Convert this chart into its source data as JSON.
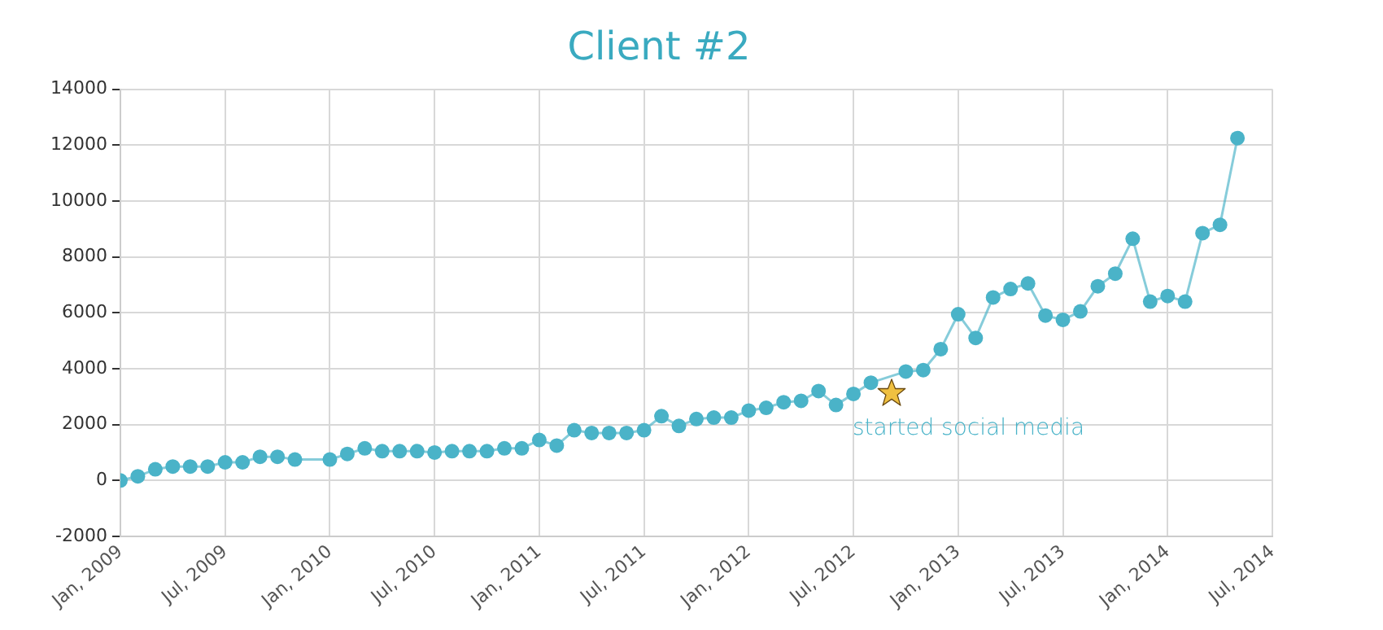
{
  "chart_data": {
    "type": "line",
    "title": "Client #2",
    "x": [
      "2009-01",
      "2009-02",
      "2009-03",
      "2009-04",
      "2009-05",
      "2009-06",
      "2009-07",
      "2009-08",
      "2009-09",
      "2009-10",
      "2009-11",
      "2010-01",
      "2010-02",
      "2010-03",
      "2010-04",
      "2010-05",
      "2010-06",
      "2010-07",
      "2010-08",
      "2010-09",
      "2010-10",
      "2010-11",
      "2010-12",
      "2011-01",
      "2011-02",
      "2011-03",
      "2011-04",
      "2011-05",
      "2011-06",
      "2011-07",
      "2011-08",
      "2011-09",
      "2011-10",
      "2011-11",
      "2011-12",
      "2012-01",
      "2012-02",
      "2012-03",
      "2012-04",
      "2012-05",
      "2012-06",
      "2012-07",
      "2012-08",
      "2012-09",
      "2012-10",
      "2012-11",
      "2012-12",
      "2013-01",
      "2013-02",
      "2013-03",
      "2013-04",
      "2013-05",
      "2013-06",
      "2013-07",
      "2013-08",
      "2013-09",
      "2013-10",
      "2013-11",
      "2013-12",
      "2014-01",
      "2014-02",
      "2014-03",
      "2014-04",
      "2014-05"
    ],
    "series": [
      {
        "color": "#4ab3c8",
        "values": [
          0,
          150,
          400,
          500,
          500,
          500,
          650,
          650,
          850,
          850,
          750,
          750,
          950,
          1150,
          1050,
          1050,
          1050,
          1000,
          1050,
          1050,
          1050,
          1150,
          1150,
          1450,
          1250,
          1800,
          1700,
          1700,
          1700,
          1800,
          2300,
          1950,
          2200,
          2250,
          2250,
          2500,
          2600,
          2800,
          2850,
          3200,
          2700,
          3100,
          3500,
          null,
          3900,
          3950,
          4700,
          5950,
          5100,
          6550,
          6850,
          7050,
          5900,
          5750,
          6050,
          6950,
          7400,
          8650,
          6400,
          6600,
          6400,
          8850,
          9150,
          12250
        ]
      }
    ],
    "xlim": [
      "2009-01",
      "2014-07"
    ],
    "xticks": [
      {
        "value": "2009-01",
        "label": "Jan, 2009"
      },
      {
        "value": "2009-07",
        "label": "Jul, 2009"
      },
      {
        "value": "2010-01",
        "label": "Jan, 2010"
      },
      {
        "value": "2010-07",
        "label": "Jul, 2010"
      },
      {
        "value": "2011-01",
        "label": "Jan, 2011"
      },
      {
        "value": "2011-07",
        "label": "Jul, 2011"
      },
      {
        "value": "2012-01",
        "label": "Jan, 2012"
      },
      {
        "value": "2012-07",
        "label": "Jul, 2012"
      },
      {
        "value": "2013-01",
        "label": "Jan, 2013"
      },
      {
        "value": "2013-07",
        "label": "Jul, 2013"
      },
      {
        "value": "2014-01",
        "label": "Jan, 2014"
      },
      {
        "value": "2014-07",
        "label": "Jul, 2014"
      }
    ],
    "ylim": [
      -2000,
      14000
    ],
    "yticks": [
      -2000,
      0,
      2000,
      4000,
      6000,
      8000,
      10000,
      12000,
      14000
    ],
    "annotations": [
      {
        "text": "started social media",
        "x": "2012-09",
        "y": 3300
      }
    ],
    "grid": true,
    "marker": "circle",
    "line_style": "solid",
    "legend": false
  }
}
